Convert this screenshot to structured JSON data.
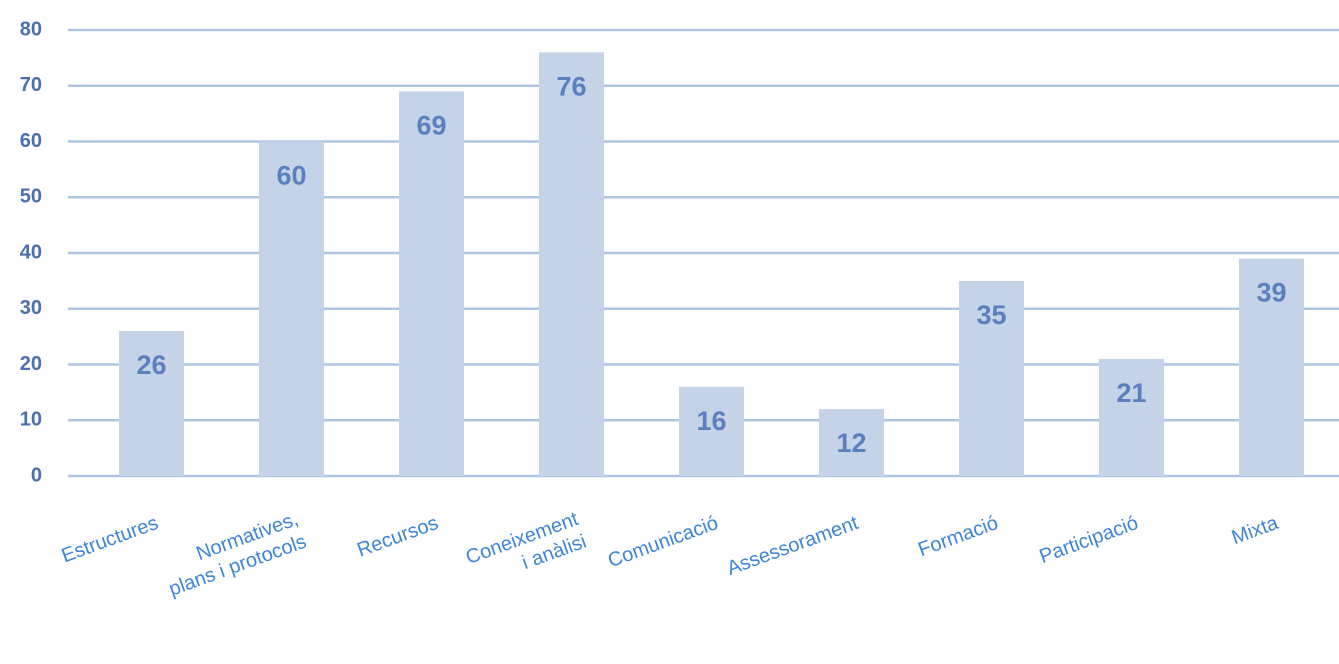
{
  "chart_data": {
    "type": "bar",
    "categories": [
      "Estructures",
      "Normatives,\nplans i protocols",
      "Recursos",
      "Coneixement\ni anàlisi",
      "Comunicació",
      "Assessorament",
      "Formació",
      "Participació",
      "Mixta"
    ],
    "values": [
      26,
      60,
      69,
      76,
      16,
      12,
      35,
      21,
      39
    ],
    "color": "#c5d3e8",
    "ylim": [
      0,
      80
    ],
    "yticks": [
      0,
      10,
      20,
      30,
      40,
      50,
      60,
      70,
      80
    ],
    "grid": true
  }
}
